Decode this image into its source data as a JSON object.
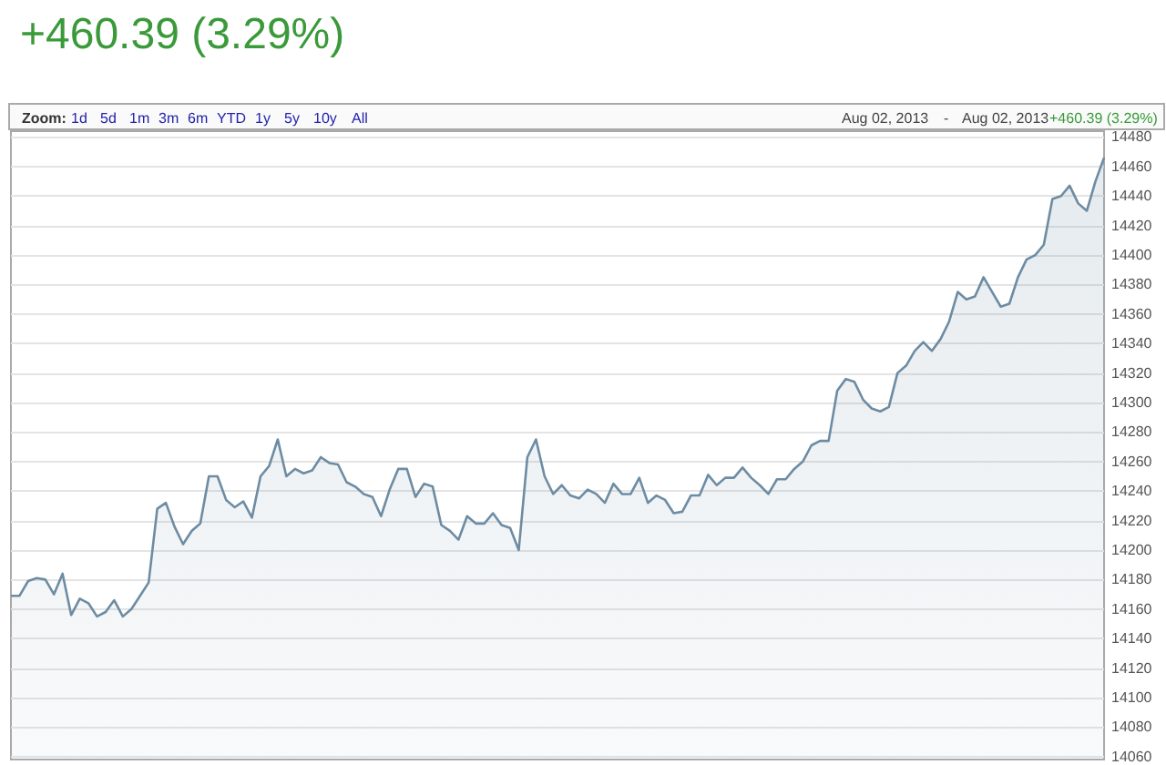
{
  "chart_data": {
    "type": "area",
    "title": "+460.39 (3.29%)",
    "annotations": [
      "Zoom:",
      "1d",
      "5d",
      "1m",
      "3m",
      "6m",
      "YTD",
      "1y",
      "5y",
      "10y",
      "All",
      "Aug 02, 2013",
      "-",
      "Aug 02, 2013",
      "+460.39 (3.29%)"
    ],
    "categories": [
      null,
      null,
      null,
      null,
      null,
      null,
      null,
      null,
      null,
      null,
      null,
      null,
      null,
      null,
      null,
      null,
      null,
      null,
      null,
      null,
      null,
      null,
      null,
      null,
      null,
      null,
      null,
      null,
      null,
      null,
      null,
      null,
      null,
      null,
      null,
      null,
      null,
      null,
      null,
      null,
      null,
      null,
      null,
      null,
      null,
      null,
      null,
      null,
      null,
      null,
      null,
      null,
      null,
      null,
      null,
      null,
      null,
      null,
      null,
      null,
      null,
      null,
      null,
      null,
      null,
      null,
      null,
      null,
      null,
      null,
      null,
      null,
      null,
      null,
      null,
      null,
      null,
      null,
      null,
      null,
      null,
      null,
      null,
      null,
      null,
      null,
      null,
      null,
      null,
      null,
      null,
      null,
      null,
      null,
      null,
      null,
      null,
      null,
      null,
      null,
      null,
      null,
      null,
      null,
      null,
      null,
      null,
      null,
      null,
      null,
      null,
      null,
      null,
      null,
      null,
      null,
      null,
      null,
      null,
      null,
      null,
      null,
      null,
      null,
      null,
      null,
      null,
      null
    ],
    "series": [
      {
        "color": "#6d8ca3",
        "values": [
          14169,
          14169,
          14179,
          14181,
          14180,
          14170,
          14184,
          14156,
          14167,
          14164,
          14155,
          14158,
          14166,
          14155,
          14160,
          14169,
          14178,
          14228,
          14232,
          14216,
          14204,
          14213,
          14218,
          14250,
          14250,
          14234,
          14229,
          14233,
          14222,
          14250,
          14257,
          14275,
          14250,
          14255,
          14252,
          14254,
          14263,
          14259,
          14258,
          14246,
          14243,
          14238,
          14236,
          14223,
          14241,
          14255,
          14255,
          14236,
          14245,
          14243,
          14217,
          14213,
          14207,
          14223,
          14218,
          14218,
          14225,
          14217,
          14215,
          14200,
          14263,
          14275,
          14250,
          14238,
          14244,
          14237,
          14235,
          14241,
          14238,
          14232,
          14245,
          14238,
          14238,
          14249,
          14232,
          14237,
          14234,
          14225,
          14226,
          14237,
          14237,
          14251,
          14244,
          14249,
          14249,
          14256,
          14249,
          14244,
          14238,
          14248,
          14248,
          14255,
          14260,
          14271,
          14274,
          14274,
          14308,
          14316,
          14314,
          14302,
          14296,
          14294,
          14297,
          14320,
          14325,
          14335,
          14341,
          14335,
          14343,
          14355,
          14375,
          14370,
          14372,
          14385,
          14375,
          14365,
          14367,
          14385,
          14397,
          14400,
          14407,
          14438,
          14440,
          14447,
          14435,
          14430,
          14450,
          14466
        ]
      }
    ],
    "ylim": [
      14058,
      14484
    ],
    "yticks": [
      14060,
      14080,
      14100,
      14120,
      14140,
      14160,
      14180,
      14200,
      14220,
      14240,
      14260,
      14280,
      14300,
      14320,
      14340,
      14360,
      14380,
      14400,
      14420,
      14440,
      14460,
      14480
    ],
    "grid": "y",
    "line_style": "solid"
  }
}
